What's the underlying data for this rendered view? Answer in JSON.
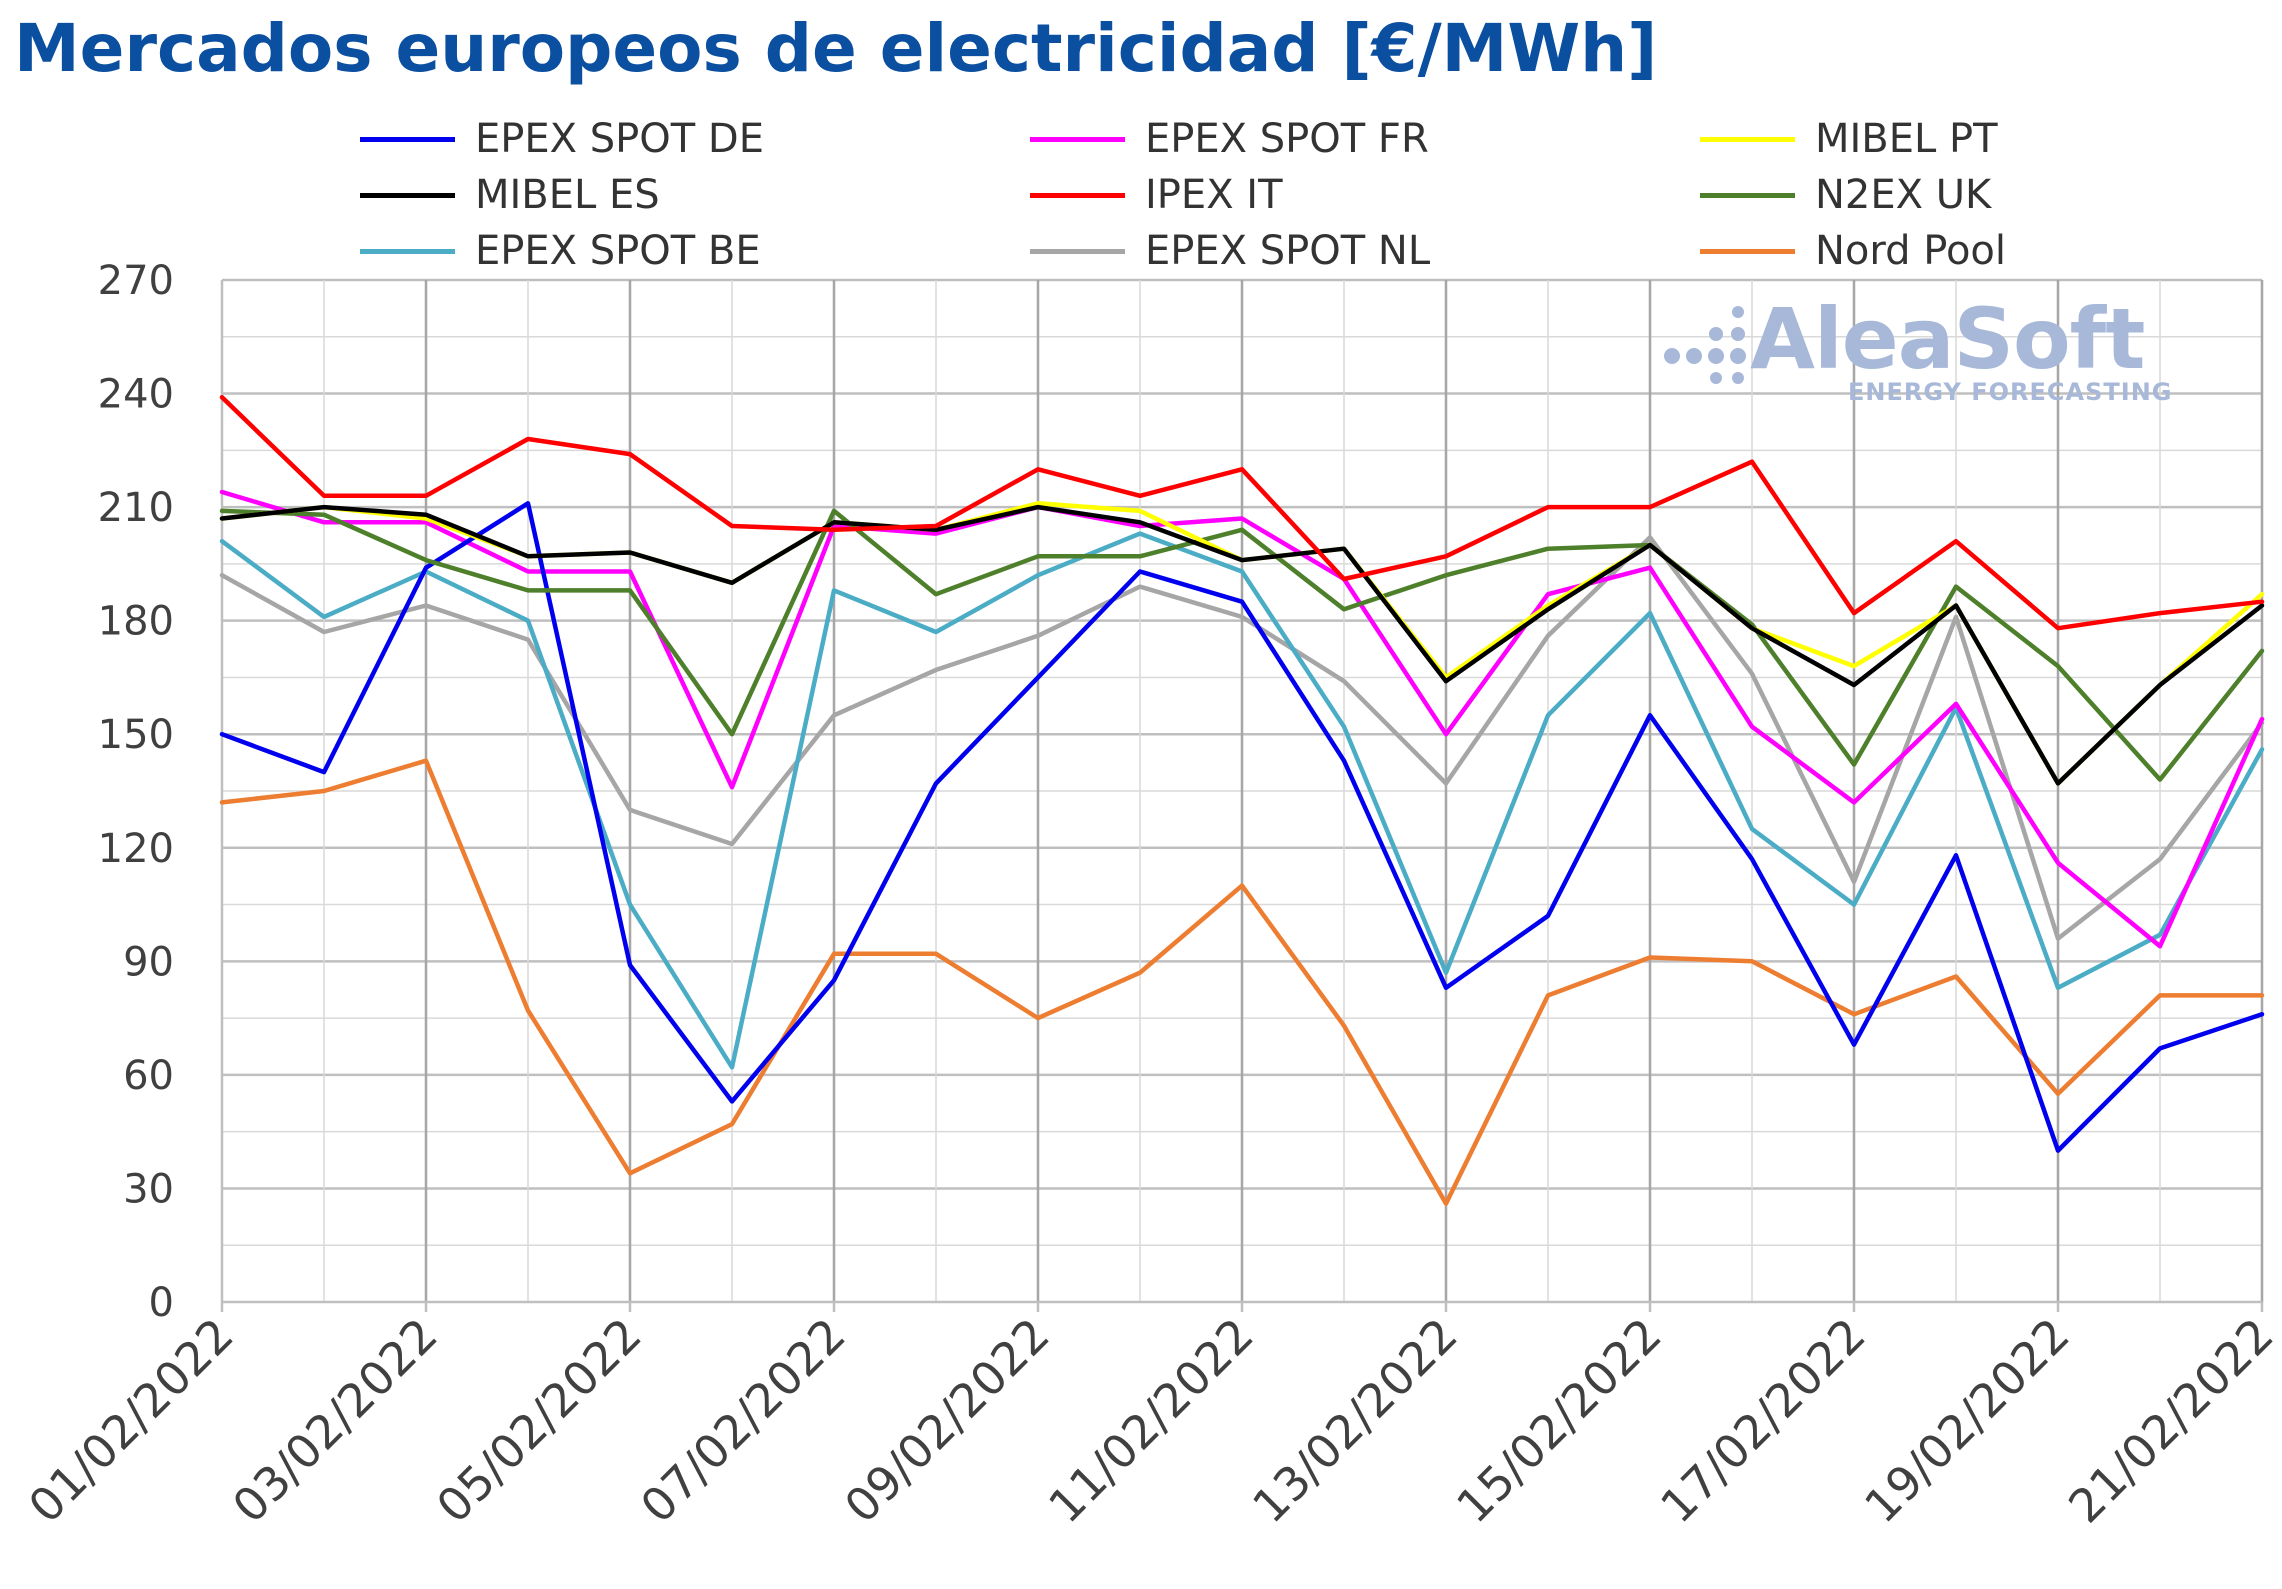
{
  "chart_data": {
    "type": "line",
    "title": "Mercados europeos de electricidad [€/MWh]",
    "xlabel": "",
    "ylabel": "",
    "ylim": [
      0,
      270
    ],
    "yticks": [
      0,
      30,
      60,
      90,
      120,
      150,
      180,
      210,
      240,
      270
    ],
    "grid": true,
    "legend_position": "top",
    "x": [
      "01/02/2022",
      "02/02/2022",
      "03/02/2022",
      "04/02/2022",
      "05/02/2022",
      "06/02/2022",
      "07/02/2022",
      "08/02/2022",
      "09/02/2022",
      "10/02/2022",
      "11/02/2022",
      "12/02/2022",
      "13/02/2022",
      "14/02/2022",
      "15/02/2022",
      "16/02/2022",
      "17/02/2022",
      "18/02/2022",
      "19/02/2022",
      "20/02/2022",
      "21/02/2022"
    ],
    "x_tick_labels": [
      "01/02/2022",
      "03/02/2022",
      "05/02/2022",
      "07/02/2022",
      "09/02/2022",
      "11/02/2022",
      "13/02/2022",
      "15/02/2022",
      "17/02/2022",
      "19/02/2022",
      "21/02/2022"
    ],
    "series": [
      {
        "name": "EPEX SPOT DE",
        "color": "#0000ee",
        "values": [
          150,
          140,
          194,
          211,
          89,
          53,
          85,
          137,
          165,
          193,
          185,
          143,
          83,
          102,
          155,
          117,
          68,
          118,
          40,
          67,
          76
        ]
      },
      {
        "name": "EPEX SPOT FR",
        "color": "#ff00ff",
        "values": [
          214,
          206,
          206,
          193,
          193,
          136,
          205,
          203,
          210,
          205,
          207,
          191,
          150,
          187,
          194,
          152,
          132,
          158,
          116,
          94,
          154
        ]
      },
      {
        "name": "MIBEL PT",
        "color": "#ffff00",
        "values": [
          207,
          210,
          207,
          197,
          198,
          190,
          206,
          204,
          211,
          209,
          196,
          199,
          165,
          184,
          200,
          178,
          168,
          184,
          137,
          163,
          187
        ]
      },
      {
        "name": "MIBEL ES",
        "color": "#000000",
        "values": [
          207,
          210,
          208,
          197,
          198,
          190,
          206,
          204,
          210,
          206,
          196,
          199,
          164,
          183,
          200,
          178,
          163,
          184,
          137,
          163,
          184
        ]
      },
      {
        "name": "IPEX IT",
        "color": "#ff0000",
        "values": [
          239,
          213,
          213,
          228,
          224,
          205,
          204,
          205,
          220,
          213,
          220,
          191,
          197,
          210,
          210,
          222,
          182,
          201,
          178,
          182,
          185
        ]
      },
      {
        "name": "N2EX UK",
        "color": "#4e7f2b",
        "values": [
          209,
          208,
          196,
          188,
          188,
          150,
          209,
          187,
          197,
          197,
          204,
          183,
          192,
          199,
          200,
          179,
          142,
          189,
          168,
          138,
          172
        ]
      },
      {
        "name": "EPEX SPOT BE",
        "color": "#4bacc6",
        "values": [
          201,
          181,
          193,
          180,
          105,
          62,
          188,
          177,
          192,
          203,
          193,
          152,
          87,
          155,
          182,
          125,
          105,
          157,
          83,
          97,
          146
        ]
      },
      {
        "name": "EPEX SPOT NL",
        "color": "#a6a6a6",
        "values": [
          192,
          177,
          184,
          175,
          130,
          121,
          155,
          167,
          176,
          189,
          181,
          164,
          137,
          176,
          202,
          166,
          111,
          181,
          96,
          117,
          153
        ]
      },
      {
        "name": "Nord Pool",
        "color": "#ed7d31",
        "values": [
          132,
          135,
          143,
          77,
          34,
          47,
          92,
          92,
          75,
          87,
          110,
          73,
          26,
          81,
          91,
          90,
          76,
          86,
          55,
          81,
          81
        ]
      }
    ]
  },
  "logo": {
    "name": "AleaSoft",
    "tagline": "ENERGY FORECASTING"
  }
}
